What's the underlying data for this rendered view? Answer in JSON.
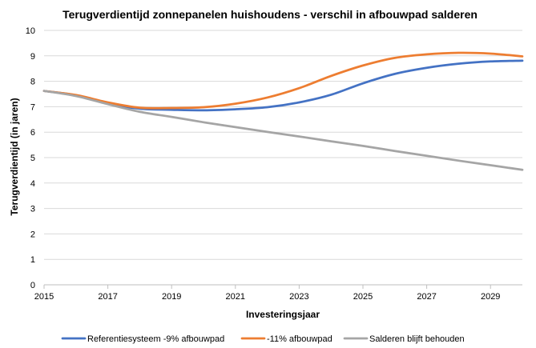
{
  "chart_data": {
    "type": "line",
    "title": "Terugverdientijd zonnepanelen huishoudens - verschil in afbouwpad salderen",
    "xlabel": "Investeringsjaar",
    "ylabel": "Terugverdientijd (in jaren)",
    "xlim": [
      2015,
      2030
    ],
    "ylim": [
      0,
      10
    ],
    "x_ticks": [
      2015,
      2017,
      2019,
      2021,
      2023,
      2025,
      2027,
      2029
    ],
    "y_ticks": [
      0,
      1,
      2,
      3,
      4,
      5,
      6,
      7,
      8,
      9,
      10
    ],
    "x_tick_labels": [
      "2015",
      "2017",
      "2019",
      "2021",
      "2023",
      "2025",
      "2027",
      "2029"
    ],
    "y_tick_labels": [
      "0",
      "1",
      "2",
      "3",
      "4",
      "5",
      "6",
      "7",
      "8",
      "9",
      "10"
    ],
    "grid": "horizontal",
    "legend_position": "bottom",
    "x": [
      2015,
      2016,
      2017,
      2018,
      2019,
      2020,
      2021,
      2022,
      2023,
      2024,
      2025,
      2026,
      2027,
      2028,
      2029,
      2030
    ],
    "series": [
      {
        "name": "Referentiesysteem -9% afbouwpad",
        "color": "#4472C4",
        "values": [
          7.62,
          7.45,
          7.12,
          6.92,
          6.88,
          6.86,
          6.9,
          6.98,
          7.17,
          7.47,
          7.92,
          8.29,
          8.53,
          8.69,
          8.78,
          8.81
        ]
      },
      {
        "name": "-11% afbouwpad",
        "color": "#ED7D31",
        "values": [
          7.62,
          7.46,
          7.17,
          6.96,
          6.95,
          6.98,
          7.12,
          7.36,
          7.73,
          8.21,
          8.62,
          8.92,
          9.06,
          9.12,
          9.09,
          8.98
        ]
      },
      {
        "name": "Salderen blijft behouden",
        "color": "#A5A5A5",
        "values": [
          7.62,
          7.42,
          7.1,
          6.8,
          6.6,
          6.39,
          6.2,
          6.01,
          5.83,
          5.64,
          5.46,
          5.26,
          5.07,
          4.88,
          4.7,
          4.52
        ]
      }
    ]
  }
}
